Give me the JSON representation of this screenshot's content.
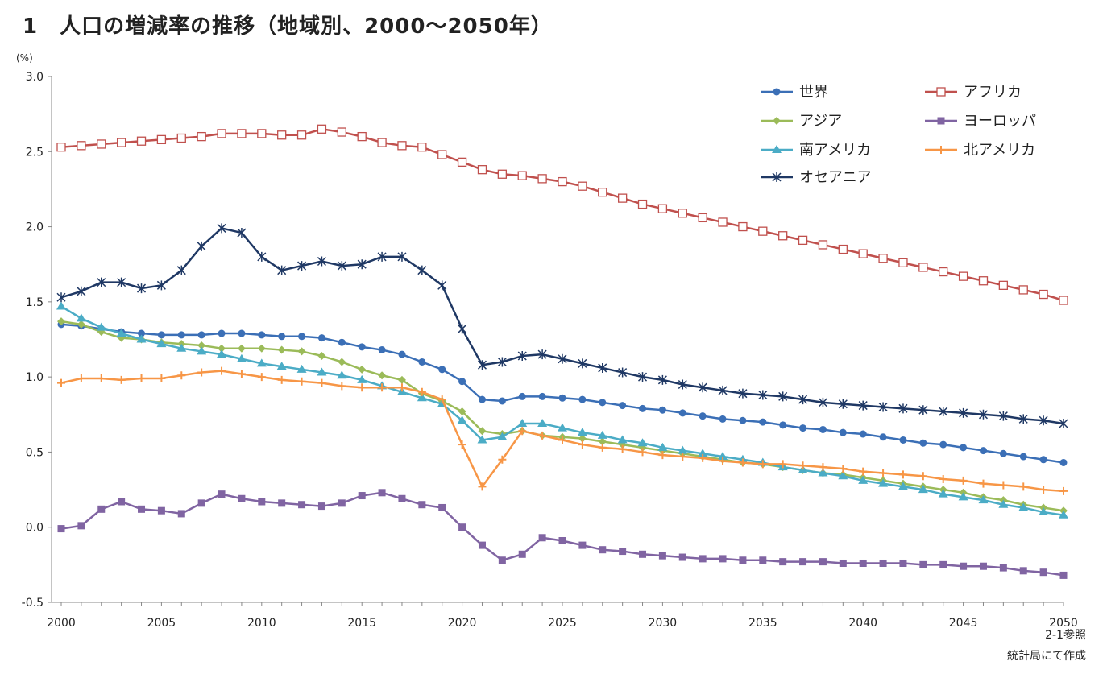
{
  "title": "1　人口の増減率の推移（地域別、2000～2050年）",
  "note": {
    "line1": "2-1参照",
    "line2": "統計局にて作成"
  },
  "chart_data": {
    "type": "line",
    "unit": "(%)",
    "xlim": [
      2000,
      2050
    ],
    "ylim": [
      -0.5,
      3.0
    ],
    "y_ticks": [
      -0.5,
      0.0,
      0.5,
      1.0,
      1.5,
      2.0,
      2.5,
      3.0
    ],
    "x_ticks": [
      2000,
      2005,
      2010,
      2015,
      2020,
      2025,
      2030,
      2035,
      2040,
      2045,
      2050
    ],
    "x_start": 2000,
    "legend_position": "top-right",
    "series": [
      {
        "name": "世界",
        "color": "#3B6FB6",
        "marker": "circle",
        "values": [
          1.35,
          1.34,
          1.32,
          1.3,
          1.29,
          1.28,
          1.28,
          1.28,
          1.29,
          1.29,
          1.28,
          1.27,
          1.27,
          1.26,
          1.23,
          1.2,
          1.18,
          1.15,
          1.1,
          1.05,
          0.97,
          0.85,
          0.84,
          0.87,
          0.87,
          0.86,
          0.85,
          0.83,
          0.81,
          0.79,
          0.78,
          0.76,
          0.74,
          0.72,
          0.71,
          0.7,
          0.68,
          0.66,
          0.65,
          0.63,
          0.62,
          0.6,
          0.58,
          0.56,
          0.55,
          0.53,
          0.51,
          0.49,
          0.47,
          0.45,
          0.43
        ]
      },
      {
        "name": "アフリカ",
        "color": "#C0504D",
        "marker": "square-open",
        "values": [
          2.53,
          2.54,
          2.55,
          2.56,
          2.57,
          2.58,
          2.59,
          2.6,
          2.62,
          2.62,
          2.62,
          2.61,
          2.61,
          2.65,
          2.63,
          2.6,
          2.56,
          2.54,
          2.53,
          2.48,
          2.43,
          2.38,
          2.35,
          2.34,
          2.32,
          2.3,
          2.27,
          2.23,
          2.19,
          2.15,
          2.12,
          2.09,
          2.06,
          2.03,
          2.0,
          1.97,
          1.94,
          1.91,
          1.88,
          1.85,
          1.82,
          1.79,
          1.76,
          1.73,
          1.7,
          1.67,
          1.64,
          1.61,
          1.58,
          1.55,
          1.51
        ]
      },
      {
        "name": "アジア",
        "color": "#9BBB59",
        "marker": "diamond",
        "values": [
          1.37,
          1.35,
          1.3,
          1.26,
          1.25,
          1.23,
          1.22,
          1.21,
          1.19,
          1.19,
          1.19,
          1.18,
          1.17,
          1.14,
          1.1,
          1.05,
          1.01,
          0.98,
          0.89,
          0.84,
          0.77,
          0.64,
          0.62,
          0.64,
          0.61,
          0.6,
          0.59,
          0.57,
          0.55,
          0.53,
          0.51,
          0.49,
          0.47,
          0.45,
          0.43,
          0.42,
          0.4,
          0.38,
          0.36,
          0.35,
          0.33,
          0.31,
          0.29,
          0.27,
          0.25,
          0.23,
          0.2,
          0.18,
          0.15,
          0.13,
          0.11
        ]
      },
      {
        "name": "ヨーロッパ",
        "color": "#8064A2",
        "marker": "square",
        "values": [
          -0.01,
          0.01,
          0.12,
          0.17,
          0.12,
          0.11,
          0.09,
          0.16,
          0.22,
          0.19,
          0.17,
          0.16,
          0.15,
          0.14,
          0.16,
          0.21,
          0.23,
          0.19,
          0.15,
          0.13,
          0.0,
          -0.12,
          -0.22,
          -0.18,
          -0.07,
          -0.09,
          -0.12,
          -0.15,
          -0.16,
          -0.18,
          -0.19,
          -0.2,
          -0.21,
          -0.21,
          -0.22,
          -0.22,
          -0.23,
          -0.23,
          -0.23,
          -0.24,
          -0.24,
          -0.24,
          -0.24,
          -0.25,
          -0.25,
          -0.26,
          -0.26,
          -0.27,
          -0.29,
          -0.3,
          -0.32
        ]
      },
      {
        "name": "南アメリカ",
        "color": "#4BACC6",
        "marker": "triangle",
        "values": [
          1.47,
          1.39,
          1.33,
          1.29,
          1.25,
          1.22,
          1.19,
          1.17,
          1.15,
          1.12,
          1.09,
          1.07,
          1.05,
          1.03,
          1.01,
          0.98,
          0.94,
          0.9,
          0.86,
          0.82,
          0.71,
          0.58,
          0.6,
          0.69,
          0.69,
          0.66,
          0.63,
          0.61,
          0.58,
          0.56,
          0.53,
          0.51,
          0.49,
          0.47,
          0.45,
          0.43,
          0.4,
          0.38,
          0.36,
          0.34,
          0.31,
          0.29,
          0.27,
          0.25,
          0.22,
          0.2,
          0.18,
          0.15,
          0.13,
          0.1,
          0.08
        ]
      },
      {
        "name": "北アメリカ",
        "color": "#F79646",
        "marker": "plus",
        "values": [
          0.96,
          0.99,
          0.99,
          0.98,
          0.99,
          0.99,
          1.01,
          1.03,
          1.04,
          1.02,
          1.0,
          0.98,
          0.97,
          0.96,
          0.94,
          0.93,
          0.93,
          0.93,
          0.9,
          0.85,
          0.55,
          0.27,
          0.45,
          0.64,
          0.61,
          0.58,
          0.55,
          0.53,
          0.52,
          0.5,
          0.48,
          0.47,
          0.46,
          0.44,
          0.43,
          0.42,
          0.42,
          0.41,
          0.4,
          0.39,
          0.37,
          0.36,
          0.35,
          0.34,
          0.32,
          0.31,
          0.29,
          0.28,
          0.27,
          0.25,
          0.24
        ]
      },
      {
        "name": "オセアニア",
        "color": "#1F3864",
        "marker": "star",
        "values": [
          1.53,
          1.57,
          1.63,
          1.63,
          1.59,
          1.61,
          1.71,
          1.87,
          1.99,
          1.96,
          1.8,
          1.71,
          1.74,
          1.77,
          1.74,
          1.75,
          1.8,
          1.8,
          1.71,
          1.61,
          1.32,
          1.08,
          1.1,
          1.14,
          1.15,
          1.12,
          1.09,
          1.06,
          1.03,
          1.0,
          0.98,
          0.95,
          0.93,
          0.91,
          0.89,
          0.88,
          0.87,
          0.85,
          0.83,
          0.82,
          0.81,
          0.8,
          0.79,
          0.78,
          0.77,
          0.76,
          0.75,
          0.74,
          0.72,
          0.71,
          0.69
        ]
      }
    ]
  }
}
